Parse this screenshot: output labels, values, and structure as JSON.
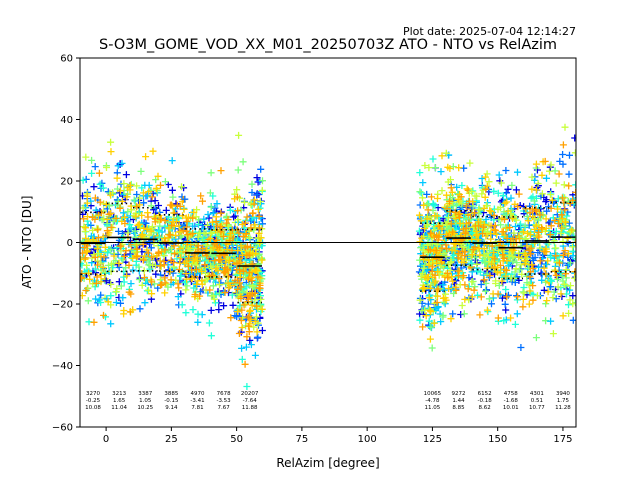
{
  "plot_date": "Plot date: 2025-07-04 12:14:27",
  "chart_data": {
    "type": "scatter",
    "title": "S-O3M_GOME_VOD_XX_M01_20250703Z ATO - NTO vs RelAzim",
    "xlabel": "RelAzim [degree]",
    "ylabel": "ATO - NTO [DU]",
    "xlim": [
      -10,
      180
    ],
    "ylim": [
      -60,
      60
    ],
    "xticks": [
      0,
      25,
      50,
      75,
      100,
      125,
      150,
      175
    ],
    "yticks": [
      -60,
      -40,
      -20,
      0,
      20,
      40,
      60
    ],
    "marker": "+",
    "colors": [
      "#0000e0",
      "#0070ff",
      "#00c8ff",
      "#20ffd8",
      "#7cff7c",
      "#c8ff3c",
      "#ffd000",
      "#ffa000"
    ],
    "segments": [
      {
        "x0": -10,
        "x1": 0,
        "mean": -0.25,
        "std": 10.08,
        "count": "3270",
        "mean_label": "-0.25",
        "std_label": "10.08"
      },
      {
        "x0": 0,
        "x1": 10,
        "mean": 1.65,
        "std": 11.04,
        "count": "3213",
        "mean_label": "1.65",
        "std_label": "11.04"
      },
      {
        "x0": 10,
        "x1": 20,
        "mean": 1.05,
        "std": 10.25,
        "count": "3387",
        "mean_label": "1.05",
        "std_label": "10.25"
      },
      {
        "x0": 20,
        "x1": 30,
        "mean": -0.15,
        "std": 9.14,
        "count": "3885",
        "mean_label": "-0.15",
        "std_label": "9.14"
      },
      {
        "x0": 30,
        "x1": 40,
        "mean": -3.41,
        "std": 7.81,
        "count": "4970",
        "mean_label": "-3.41",
        "std_label": "7.81"
      },
      {
        "x0": 40,
        "x1": 50,
        "mean": -3.53,
        "std": 7.67,
        "count": "7678",
        "mean_label": "-3.53",
        "std_label": "7.67"
      },
      {
        "x0": 50,
        "x1": 60,
        "mean": -7.64,
        "std": 11.88,
        "count": "20207",
        "mean_label": "-7.64",
        "std_label": "11.88"
      },
      {
        "x0": 120,
        "x1": 130,
        "mean": -4.78,
        "std": 11.05,
        "count": "10065",
        "mean_label": "-4.78",
        "std_label": "11.05"
      },
      {
        "x0": 130,
        "x1": 140,
        "mean": 1.44,
        "std": 8.85,
        "count": "9272",
        "mean_label": "1.44",
        "std_label": "8.85"
      },
      {
        "x0": 140,
        "x1": 150,
        "mean": -0.18,
        "std": 8.62,
        "count": "6152",
        "mean_label": "-0.18",
        "std_label": "8.62"
      },
      {
        "x0": 150,
        "x1": 160,
        "mean": -1.68,
        "std": 10.01,
        "count": "4758",
        "mean_label": "-1.68",
        "std_label": "10.01"
      },
      {
        "x0": 160,
        "x1": 170,
        "mean": 0.51,
        "std": 10.77,
        "count": "4301",
        "mean_label": "0.51",
        "std_label": "10.77"
      },
      {
        "x0": 170,
        "x1": 180,
        "mean": 1.75,
        "std": 11.28,
        "count": "3940",
        "mean_label": "1.75",
        "std_label": "11.28"
      }
    ],
    "grid": false,
    "zero_line": true
  }
}
